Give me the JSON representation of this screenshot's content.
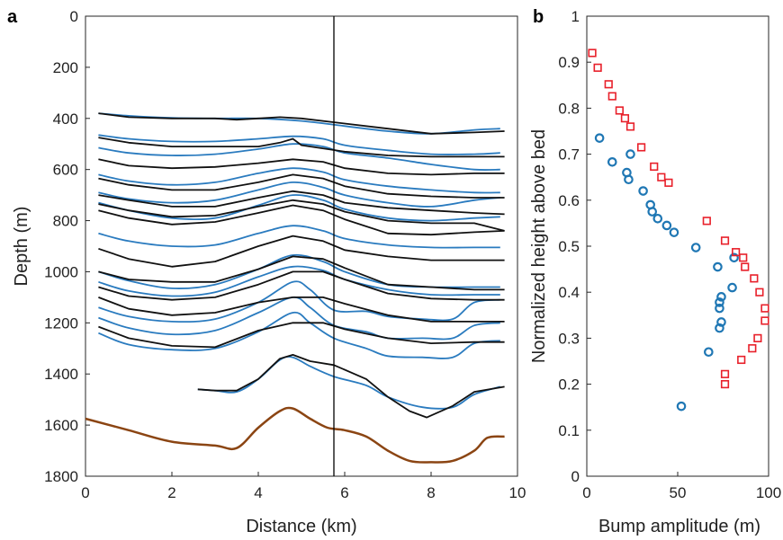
{
  "figure": {
    "panel_a_label": "a",
    "panel_b_label": "b",
    "colors": {
      "observed": "#111111",
      "modeled": "#2a7bbf",
      "bed": "#8b4513",
      "marker_line": "#000000",
      "blue_circles": "#1f77b4",
      "red_squares": "#e8202a"
    }
  },
  "chart_data": [
    {
      "type": "line",
      "panel": "a",
      "xlabel": "Distance (km)",
      "ylabel": "Depth (m)",
      "xlim": [
        0,
        10
      ],
      "ylim": [
        1800,
        0
      ],
      "y_reversed": true,
      "xticks": [
        "0",
        "2",
        "4",
        "6",
        "8",
        "10"
      ],
      "yticks": [
        "0",
        "200",
        "400",
        "600",
        "800",
        "1000",
        "1200",
        "1400",
        "1600",
        "1800"
      ],
      "grid": false,
      "vertical_line_x": 5.75,
      "observed_layers": [
        {
          "x": [
            0.3,
            1,
            2,
            3,
            3.5,
            4,
            4.5,
            5,
            6,
            7,
            8,
            9,
            9.7
          ],
          "y": [
            380,
            395,
            400,
            400,
            405,
            400,
            395,
            400,
            420,
            440,
            460,
            455,
            450
          ]
        },
        {
          "x": [
            0.3,
            1,
            2,
            3,
            4,
            4.5,
            4.8,
            5,
            6,
            7,
            8,
            9,
            9.7
          ],
          "y": [
            475,
            495,
            510,
            510,
            510,
            495,
            480,
            505,
            530,
            545,
            550,
            550,
            550
          ]
        },
        {
          "x": [
            0.3,
            1,
            2,
            3,
            4,
            4.8,
            5.5,
            6,
            7,
            8,
            9,
            9.7
          ],
          "y": [
            560,
            585,
            595,
            590,
            575,
            560,
            570,
            595,
            615,
            620,
            615,
            615
          ]
        },
        {
          "x": [
            0.3,
            1,
            2,
            3,
            4,
            4.8,
            5.5,
            6,
            7,
            8,
            9,
            9.7
          ],
          "y": [
            635,
            660,
            680,
            680,
            650,
            620,
            635,
            665,
            695,
            705,
            710,
            710
          ]
        },
        {
          "x": [
            0.3,
            1,
            2,
            3,
            4,
            4.8,
            5.5,
            6,
            7,
            8,
            9,
            9.7
          ],
          "y": [
            700,
            720,
            745,
            745,
            710,
            685,
            700,
            730,
            750,
            760,
            770,
            775
          ]
        },
        {
          "x": [
            0.3,
            1,
            2,
            3,
            4,
            4.8,
            5.5,
            6,
            7,
            8,
            9,
            9.7
          ],
          "y": [
            735,
            760,
            785,
            780,
            745,
            720,
            735,
            765,
            800,
            810,
            810,
            840
          ]
        },
        {
          "x": [
            0.3,
            1,
            2,
            3,
            4,
            4.8,
            5.5,
            6,
            7,
            8,
            9,
            9.7
          ],
          "y": [
            760,
            790,
            815,
            805,
            770,
            740,
            760,
            795,
            850,
            855,
            845,
            840
          ]
        },
        {
          "x": [
            0.3,
            1,
            2,
            3,
            4,
            4.8,
            5.5,
            6,
            7,
            8,
            9,
            9.7
          ],
          "y": [
            910,
            950,
            980,
            960,
            900,
            860,
            880,
            915,
            940,
            955,
            955,
            955
          ]
        },
        {
          "x": [
            0.3,
            1,
            2,
            3,
            4,
            4.8,
            5.5,
            6,
            7,
            8,
            9,
            9.7
          ],
          "y": [
            1000,
            1030,
            1040,
            1040,
            990,
            940,
            950,
            985,
            1050,
            1060,
            1070,
            1070
          ]
        },
        {
          "x": [
            0.3,
            1,
            2,
            3,
            4,
            4.8,
            5.5,
            6,
            7,
            8,
            9,
            9.7
          ],
          "y": [
            1060,
            1095,
            1110,
            1100,
            1050,
            1000,
            1000,
            1030,
            1085,
            1105,
            1110,
            1110
          ]
        },
        {
          "x": [
            0.3,
            1,
            2,
            3,
            4,
            4.8,
            5.5,
            6,
            7,
            8,
            9,
            9.7
          ],
          "y": [
            1100,
            1145,
            1170,
            1160,
            1120,
            1100,
            1100,
            1125,
            1170,
            1195,
            1195,
            1195
          ]
        },
        {
          "x": [
            0.3,
            1,
            2,
            3,
            4,
            4.8,
            5.5,
            6,
            7,
            8,
            9,
            9.7
          ],
          "y": [
            1215,
            1260,
            1290,
            1295,
            1230,
            1200,
            1200,
            1225,
            1260,
            1280,
            1275,
            1275
          ]
        },
        {
          "x": [
            2.6,
            3,
            3.5,
            4,
            4.5,
            4.8,
            5.2,
            5.75,
            6.5,
            7,
            7.5,
            7.9,
            8.5,
            9,
            9.7
          ],
          "y": [
            1460,
            1465,
            1465,
            1420,
            1340,
            1325,
            1350,
            1365,
            1420,
            1490,
            1545,
            1570,
            1525,
            1470,
            1450
          ]
        }
      ],
      "modeled_layers": [
        {
          "x": [
            0.3,
            1,
            2,
            3,
            4,
            5,
            6,
            7,
            8,
            9,
            9.6
          ],
          "y": [
            380,
            390,
            398,
            400,
            400,
            410,
            430,
            450,
            460,
            445,
            440
          ]
        },
        {
          "x": [
            0.3,
            1,
            2,
            3,
            4,
            4.8,
            5.5,
            6,
            7,
            8,
            9,
            9.6
          ],
          "y": [
            465,
            480,
            490,
            490,
            480,
            470,
            480,
            505,
            525,
            540,
            540,
            535
          ]
        },
        {
          "x": [
            0.3,
            1,
            2,
            3,
            4,
            4.8,
            5.5,
            6,
            7,
            8,
            9,
            9.6
          ],
          "y": [
            515,
            535,
            545,
            540,
            520,
            500,
            510,
            535,
            555,
            580,
            600,
            600
          ]
        },
        {
          "x": [
            0.3,
            1,
            2,
            3,
            4,
            4.8,
            5.5,
            6,
            7,
            8,
            9,
            9.6
          ],
          "y": [
            620,
            645,
            660,
            650,
            615,
            595,
            610,
            640,
            665,
            680,
            690,
            690
          ]
        },
        {
          "x": [
            0.3,
            1,
            2,
            3,
            4,
            4.8,
            5.5,
            6,
            7,
            8,
            9,
            9.6
          ],
          "y": [
            690,
            715,
            730,
            720,
            680,
            650,
            670,
            700,
            730,
            745,
            720,
            710
          ]
        },
        {
          "x": [
            0.3,
            1,
            2,
            3,
            4,
            4.8,
            5.5,
            6,
            7,
            8,
            9,
            9.6
          ],
          "y": [
            730,
            760,
            790,
            790,
            740,
            700,
            720,
            755,
            790,
            800,
            790,
            785
          ]
        },
        {
          "x": [
            0.3,
            1,
            2,
            3,
            4,
            4.8,
            5.5,
            6,
            7,
            8,
            9,
            9.6
          ],
          "y": [
            850,
            880,
            900,
            895,
            850,
            820,
            840,
            870,
            895,
            905,
            905,
            905
          ]
        },
        {
          "x": [
            0.3,
            1,
            2,
            3,
            4,
            4.8,
            5.5,
            6,
            7,
            8,
            9,
            9.6
          ],
          "y": [
            1000,
            1035,
            1065,
            1050,
            990,
            935,
            960,
            1000,
            1050,
            1060,
            1060,
            1060
          ]
        },
        {
          "x": [
            0.3,
            1,
            2,
            3,
            4,
            4.8,
            5.5,
            6,
            7,
            8,
            9,
            9.6
          ],
          "y": [
            1040,
            1075,
            1095,
            1080,
            1020,
            980,
            995,
            1030,
            1070,
            1090,
            1090,
            1090
          ]
        },
        {
          "x": [
            0.3,
            1,
            2,
            3,
            4,
            4.8,
            5.2,
            5.75,
            6.5,
            7,
            7.8,
            8.5,
            9,
            9.6
          ],
          "y": [
            1140,
            1175,
            1195,
            1185,
            1120,
            1040,
            1070,
            1150,
            1155,
            1175,
            1185,
            1185,
            1120,
            1110
          ]
        },
        {
          "x": [
            0.3,
            1,
            2,
            3,
            4,
            4.8,
            5.2,
            5.75,
            6.5,
            7,
            7.8,
            8.5,
            9,
            9.6
          ],
          "y": [
            1180,
            1220,
            1245,
            1230,
            1160,
            1100,
            1140,
            1210,
            1235,
            1260,
            1260,
            1260,
            1210,
            1200
          ]
        },
        {
          "x": [
            0.3,
            1,
            2,
            3,
            4,
            4.8,
            5.2,
            5.75,
            6.5,
            7,
            7.8,
            8.5,
            9,
            9.6
          ],
          "y": [
            1240,
            1285,
            1305,
            1300,
            1235,
            1160,
            1200,
            1260,
            1300,
            1330,
            1335,
            1335,
            1280,
            1270
          ]
        },
        {
          "x": [
            2.6,
            3,
            3.5,
            4,
            4.5,
            4.8,
            5.2,
            5.75,
            6.5,
            7,
            7.8,
            8.5,
            9,
            9.6
          ],
          "y": [
            1460,
            1465,
            1470,
            1420,
            1345,
            1335,
            1370,
            1410,
            1445,
            1490,
            1530,
            1530,
            1480,
            1450
          ]
        }
      ],
      "bed": {
        "x": [
          0,
          1,
          2,
          3,
          3.5,
          4,
          4.5,
          4.8,
          5.2,
          5.6,
          6,
          6.5,
          7,
          7.5,
          8,
          8.5,
          9,
          9.3,
          9.7
        ],
        "y": [
          1575,
          1620,
          1665,
          1680,
          1690,
          1610,
          1545,
          1535,
          1575,
          1610,
          1620,
          1645,
          1700,
          1740,
          1745,
          1740,
          1700,
          1650,
          1645
        ]
      }
    },
    {
      "type": "scatter",
      "panel": "b",
      "xlabel": "Bump amplitude (m)",
      "ylabel": "Normalized height above bed",
      "xlim": [
        0,
        100
      ],
      "ylim": [
        0,
        1
      ],
      "xticks": [
        "0",
        "50",
        "100"
      ],
      "yticks": [
        "0",
        "0.1",
        "0.2",
        "0.3",
        "0.4",
        "0.5",
        "0.6",
        "0.7",
        "0.8",
        "0.9",
        "1"
      ],
      "grid": false,
      "series": [
        {
          "marker": "circle",
          "color": "#1f77b4",
          "points": [
            [
              7,
              0.735
            ],
            [
              14,
              0.683
            ],
            [
              22,
              0.66
            ],
            [
              23,
              0.645
            ],
            [
              24,
              0.7
            ],
            [
              31,
              0.62
            ],
            [
              35,
              0.59
            ],
            [
              36,
              0.575
            ],
            [
              39,
              0.56
            ],
            [
              44,
              0.545
            ],
            [
              48,
              0.53
            ],
            [
              60,
              0.497
            ],
            [
              72,
              0.455
            ],
            [
              80,
              0.41
            ],
            [
              74,
              0.39
            ],
            [
              73,
              0.378
            ],
            [
              73,
              0.365
            ],
            [
              74,
              0.335
            ],
            [
              73,
              0.322
            ],
            [
              67,
              0.27
            ],
            [
              52,
              0.152
            ],
            [
              81,
              0.475
            ]
          ]
        },
        {
          "marker": "square",
          "color": "#e8202a",
          "points": [
            [
              3,
              0.92
            ],
            [
              6,
              0.888
            ],
            [
              12,
              0.852
            ],
            [
              14,
              0.826
            ],
            [
              18,
              0.795
            ],
            [
              21,
              0.778
            ],
            [
              24,
              0.76
            ],
            [
              30,
              0.715
            ],
            [
              37,
              0.673
            ],
            [
              41,
              0.65
            ],
            [
              45,
              0.638
            ],
            [
              66,
              0.555
            ],
            [
              76,
              0.512
            ],
            [
              82,
              0.487
            ],
            [
              86,
              0.475
            ],
            [
              87,
              0.455
            ],
            [
              92,
              0.43
            ],
            [
              95,
              0.4
            ],
            [
              98,
              0.365
            ],
            [
              98,
              0.338
            ],
            [
              94,
              0.3
            ],
            [
              91,
              0.278
            ],
            [
              85,
              0.253
            ],
            [
              76,
              0.222
            ],
            [
              76,
              0.2
            ]
          ]
        }
      ]
    }
  ]
}
